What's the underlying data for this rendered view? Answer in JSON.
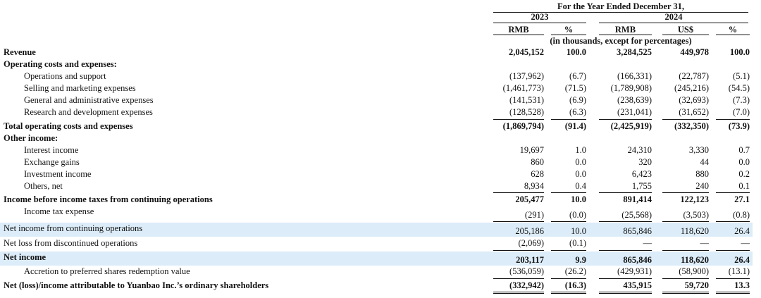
{
  "header": {
    "period": "For the Year Ended December 31,",
    "year1": "2023",
    "year2": "2024",
    "col_rmb1": "RMB",
    "col_pct1": "%",
    "col_rmb2": "RMB",
    "col_usd": "US$",
    "col_pct2": "%",
    "units_note": "(in thousands, except for percentages)"
  },
  "rows": [
    {
      "label": "Revenue",
      "v": [
        "2,045,152",
        "100.0",
        "3,284,525",
        "449,978",
        "100.0"
      ]
    },
    {
      "label": "Operating costs and expenses:",
      "v": [
        "",
        "",
        "",
        "",
        ""
      ]
    },
    {
      "label": "Operations and support",
      "v": [
        "(137,962)",
        "(6.7)",
        "(166,331)",
        "(22,787)",
        "(5.1)"
      ]
    },
    {
      "label": "Selling and marketing expenses",
      "v": [
        "(1,461,773)",
        "(71.5)",
        "(1,789,908)",
        "(245,216)",
        "(54.5)"
      ]
    },
    {
      "label": "General and administrative expenses",
      "v": [
        "(141,531)",
        "(6.9)",
        "(238,639)",
        "(32,693)",
        "(7.3)"
      ]
    },
    {
      "label": "Research and development expenses",
      "v": [
        "(128,528)",
        "(6.3)",
        "(231,041)",
        "(31,652)",
        "(7.0)"
      ]
    },
    {
      "label": "Total operating costs and expenses",
      "v": [
        "(1,869,794)",
        "(91.4)",
        "(2,425,919)",
        "(332,350)",
        "(73.9)"
      ]
    },
    {
      "label": "Other income:",
      "v": [
        "",
        "",
        "",
        "",
        ""
      ]
    },
    {
      "label": "Interest income",
      "v": [
        "19,697",
        "1.0",
        "24,310",
        "3,330",
        "0.7"
      ]
    },
    {
      "label": "Exchange gains",
      "v": [
        "860",
        "0.0",
        "320",
        "44",
        "0.0"
      ]
    },
    {
      "label": "Investment income",
      "v": [
        "628",
        "0.0",
        "6,423",
        "880",
        "0.2"
      ]
    },
    {
      "label": "Others, net",
      "v": [
        "8,934",
        "0.4",
        "1,755",
        "240",
        "0.1"
      ]
    },
    {
      "label": "Income before income taxes from continuing operations",
      "v": [
        "205,477",
        "10.0",
        "891,414",
        "122,123",
        "27.1"
      ]
    },
    {
      "label": "Income tax expense",
      "v": [
        "(291)",
        "(0.0)",
        "(25,568)",
        "(3,503)",
        "(0.8)"
      ]
    },
    {
      "label": "Net income from continuing operations",
      "v": [
        "205,186",
        "10.0",
        "865,846",
        "118,620",
        "26.4"
      ]
    },
    {
      "label": "Net loss from discontinued operations",
      "v": [
        "(2,069)",
        "(0.1)",
        "—",
        "—",
        "—"
      ]
    },
    {
      "label": "Net income",
      "v": [
        "203,117",
        "9.9",
        "865,846",
        "118,620",
        "26.4"
      ]
    },
    {
      "label": "Accretion to preferred shares redemption value",
      "v": [
        "(536,059)",
        "(26.2)",
        "(429,931)",
        "(58,900)",
        "(13.1)"
      ]
    },
    {
      "label": "Net (loss)/income attributable to Yuanbao Inc.’s ordinary shareholders",
      "v": [
        "(332,942)",
        "(16.3)",
        "435,915",
        "59,720",
        "13.3"
      ]
    }
  ]
}
